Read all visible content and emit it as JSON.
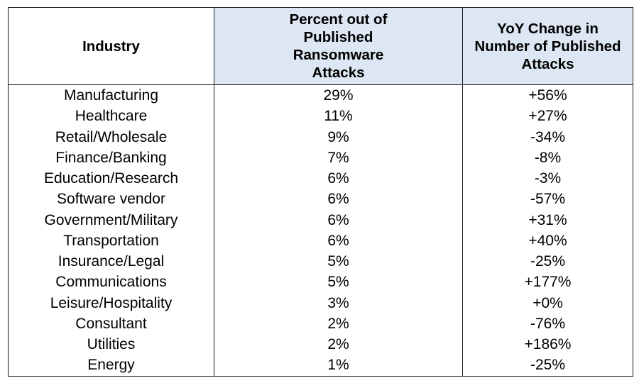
{
  "table": {
    "headers": {
      "industry": "Industry",
      "percent": "Percent out of\nPublished\nRansomware\nAttacks",
      "yoy": "YoY Change in\nNumber of Published\nAttacks"
    },
    "rows": [
      {
        "industry": "Manufacturing",
        "percent": "29%",
        "yoy": "+56%"
      },
      {
        "industry": "Healthcare",
        "percent": "11%",
        "yoy": "+27%"
      },
      {
        "industry": "Retail/Wholesale",
        "percent": "9%",
        "yoy": "-34%"
      },
      {
        "industry": "Finance/Banking",
        "percent": "7%",
        "yoy": "-8%"
      },
      {
        "industry": "Education/Research",
        "percent": "6%",
        "yoy": "-3%"
      },
      {
        "industry": "Software vendor",
        "percent": "6%",
        "yoy": "-57%"
      },
      {
        "industry": "Government/Military",
        "percent": "6%",
        "yoy": "+31%"
      },
      {
        "industry": "Transportation",
        "percent": "6%",
        "yoy": "+40%"
      },
      {
        "industry": "Insurance/Legal",
        "percent": "5%",
        "yoy": "-25%"
      },
      {
        "industry": "Communications",
        "percent": "5%",
        "yoy": "+177%"
      },
      {
        "industry": "Leisure/Hospitality",
        "percent": "3%",
        "yoy": "+0%"
      },
      {
        "industry": "Consultant",
        "percent": "2%",
        "yoy": "-76%"
      },
      {
        "industry": "Utilities",
        "percent": "2%",
        "yoy": "+186%"
      },
      {
        "industry": "Energy",
        "percent": "1%",
        "yoy": "-25%"
      }
    ]
  },
  "colors": {
    "header_fill": "#dde6f3",
    "border": "#1a1a1a",
    "text": "#000000"
  }
}
